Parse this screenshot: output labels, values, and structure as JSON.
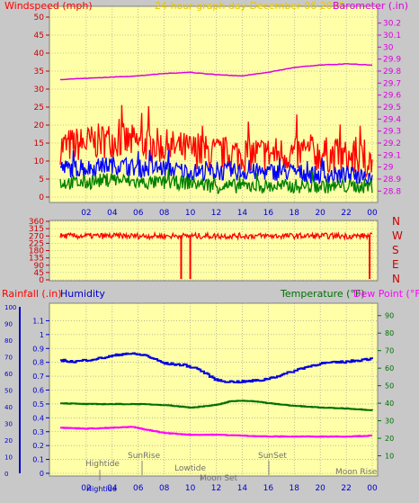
{
  "colors": {
    "background": "#c8c8c8",
    "plot_background": "#ffffa8",
    "grid": "#909090",
    "wind_axis": "#cc0000",
    "baro_axis": "#dd00dd",
    "wind_title": "#ff0000",
    "header": "#e8c800",
    "rain_title": "#ff0000",
    "humidity_title": "#0000c8",
    "temp_title": "#007000",
    "dew_title": "#ff00ff",
    "temp_axis": "#007000",
    "rain_axis": "#0000cc",
    "humidity_axis": "#0000cc",
    "compass": "#cc0000",
    "annotation": "#707070"
  },
  "titles": {
    "windspeed": "Windspeed (mph)",
    "header": "24 hour graph day   December 06 2020",
    "barometer": "Barometer (.in)",
    "rainfall": "Rainfall (.in)",
    "humidity": "Humidity",
    "temperature": "Temperature (°F)",
    "dewpoint": "Dew Point (°F)"
  },
  "compass_labels": [
    "N",
    "W",
    "S",
    "E",
    "N"
  ],
  "annotations": {
    "hightide": "Hightide",
    "sunrise": "SunRise",
    "lowtide": "Lowtide",
    "sunset": "SunSet",
    "moonset": "Moon Set",
    "moonrise": "Moon Rise",
    "hightide2": "Hightide"
  },
  "chart_data": [
    {
      "type": "line",
      "title": "Windspeed (mph) / Barometer (.in)",
      "x_ticks": [
        "02",
        "04",
        "06",
        "08",
        "10",
        "12",
        "14",
        "16",
        "18",
        "20",
        "22",
        "00"
      ],
      "y_left": {
        "label": "Windspeed (mph)",
        "range": [
          0,
          50
        ],
        "ticks": [
          0,
          5,
          10,
          15,
          20,
          25,
          30,
          35,
          40,
          45,
          50
        ]
      },
      "y_right": {
        "label": "Barometer (.in)",
        "range": [
          28.75,
          30.25
        ],
        "ticks": [
          "28.8",
          "28.9",
          "29",
          "29.1",
          "29.2",
          "29.3",
          "29.4",
          "29.5",
          "29.6",
          "29.7",
          "29.8",
          "29.9",
          "30",
          "30.1",
          "30.2"
        ]
      },
      "grid": true,
      "series": [
        {
          "name": "Barometer",
          "color": "#dd00dd",
          "axis": "right",
          "x": [
            0,
            2,
            4,
            6,
            8,
            10,
            12,
            14,
            16,
            18,
            20,
            22,
            24
          ],
          "values": [
            29.73,
            29.74,
            29.75,
            29.76,
            29.78,
            29.79,
            29.77,
            29.76,
            29.79,
            29.83,
            29.85,
            29.86,
            29.85
          ]
        },
        {
          "name": "Gust",
          "color": "#ff0000",
          "axis": "left",
          "x": [
            0,
            2,
            4,
            6,
            8,
            10,
            12,
            14,
            16,
            18,
            20,
            22,
            24
          ],
          "values": [
            14,
            15,
            16,
            15,
            14,
            13,
            12,
            12,
            12,
            12,
            12,
            11,
            10
          ],
          "noise": 5
        },
        {
          "name": "Average",
          "color": "#0000ff",
          "axis": "left",
          "x": [
            0,
            2,
            4,
            6,
            8,
            10,
            12,
            14,
            16,
            18,
            20,
            22,
            24
          ],
          "values": [
            8,
            8,
            9,
            8,
            8,
            7,
            7,
            7,
            7,
            7,
            6,
            6,
            6
          ],
          "noise": 2.5
        },
        {
          "name": "Lull",
          "color": "#008000",
          "axis": "left",
          "x": [
            0,
            2,
            4,
            6,
            8,
            10,
            12,
            14,
            16,
            18,
            20,
            22,
            24
          ],
          "values": [
            4,
            4,
            5,
            4,
            4,
            4,
            3,
            3,
            3,
            3,
            3,
            3,
            3
          ],
          "noise": 2
        }
      ]
    },
    {
      "type": "line",
      "title": "Wind direction",
      "y_left": {
        "range": [
          0,
          360
        ],
        "ticks": [
          0,
          45,
          90,
          135,
          180,
          225,
          270,
          315,
          360
        ]
      },
      "grid": true,
      "series": [
        {
          "name": "Wind direction",
          "color": "#ff0000",
          "x": [
            0,
            24
          ],
          "values": [
            270,
            270
          ],
          "noise": 18,
          "drops": [
            9.3,
            10.0,
            23.8
          ]
        }
      ]
    },
    {
      "type": "line",
      "title": "Rainfall / Humidity / Temperature / Dew Point",
      "x_ticks": [
        "02",
        "04",
        "06",
        "08",
        "10",
        "12",
        "14",
        "16",
        "18",
        "20",
        "22",
        "00"
      ],
      "y_humidity": {
        "label": "Humidity",
        "range": [
          0,
          100
        ],
        "ticks": [
          0,
          10,
          20,
          30,
          40,
          50,
          60,
          70,
          80,
          90,
          100
        ]
      },
      "y_rain": {
        "label": "Rainfall (.in)",
        "range": [
          0,
          1.2
        ],
        "ticks": [
          "0",
          "0.1",
          "0.2",
          "0.3",
          "0.4",
          "0.5",
          "0.6",
          "0.7",
          "0.8",
          "0.9",
          "1",
          "1.1"
        ]
      },
      "y_temp": {
        "label": "Temperature (°F)",
        "range": [
          0,
          95
        ],
        "ticks": [
          10,
          20,
          30,
          40,
          50,
          60,
          70,
          80,
          90
        ]
      },
      "grid": true,
      "series": [
        {
          "name": "Humidity",
          "color": "#0000dd",
          "axis": "humidity",
          "x": [
            0,
            1,
            3,
            5,
            6.5,
            8,
            9.5,
            10.5,
            12,
            13,
            14,
            15.5,
            17,
            18.5,
            20,
            22,
            24
          ],
          "values": [
            68,
            67,
            69,
            72,
            71,
            66,
            65,
            63,
            56,
            55,
            55,
            56,
            59,
            63,
            66,
            67,
            69
          ]
        },
        {
          "name": "Temperature",
          "color": "#007000",
          "axis": "temp",
          "x": [
            0,
            2,
            4,
            6,
            8,
            10,
            12,
            13,
            14,
            15,
            16,
            18,
            20,
            22,
            24
          ],
          "values": [
            40,
            39.5,
            39.5,
            39.5,
            39,
            37.5,
            39,
            41,
            41.5,
            41,
            40,
            38.5,
            37.5,
            37,
            36
          ]
        },
        {
          "name": "Dew Point",
          "color": "#ff00ff",
          "axis": "temp",
          "x": [
            0,
            2,
            4,
            5.5,
            6.5,
            8,
            10,
            12,
            14,
            16,
            18,
            20,
            22,
            24
          ],
          "values": [
            26,
            25.5,
            26,
            26.5,
            25,
            23,
            22,
            22,
            21.5,
            21,
            21,
            21,
            21,
            21.5
          ]
        }
      ],
      "annotations": [
        "Hightide",
        "SunRise",
        "Lowtide",
        "SunSet",
        "Moon Set",
        "Moon Rise",
        "Hightide"
      ]
    }
  ]
}
